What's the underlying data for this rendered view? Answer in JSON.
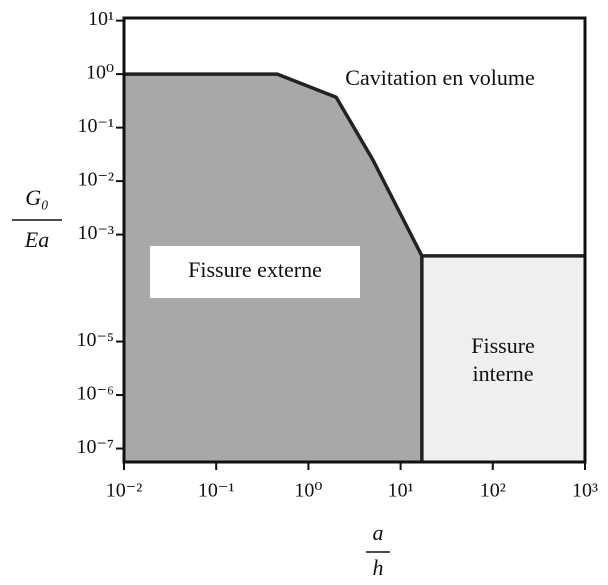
{
  "chart_data": {
    "type": "phase",
    "xlabel": {
      "numerator": "a",
      "denominator": "h"
    },
    "ylabel": {
      "numerator": "G₀",
      "denominator": "Ea"
    },
    "xscale": "log",
    "yscale": "log",
    "xlim": [
      0.01,
      1000
    ],
    "ylim": [
      5.6e-08,
      11.2
    ],
    "xticks": [
      {
        "value": 0.01,
        "label": "10⁻²"
      },
      {
        "value": 0.1,
        "label": "10⁻¹"
      },
      {
        "value": 1,
        "label": "10⁰"
      },
      {
        "value": 10,
        "label": "10¹"
      },
      {
        "value": 100,
        "label": "10²"
      },
      {
        "value": 1000,
        "label": "10³"
      }
    ],
    "yticks": [
      {
        "value": 10,
        "label": "10¹"
      },
      {
        "value": 1,
        "label": "10⁰"
      },
      {
        "value": 0.1,
        "label": "10⁻¹"
      },
      {
        "value": 0.01,
        "label": "10⁻²"
      },
      {
        "value": 0.001,
        "label": "10⁻³"
      },
      {
        "value": 1e-05,
        "label": "10⁻⁵"
      },
      {
        "value": 1e-06,
        "label": "10⁻⁶"
      },
      {
        "value": 1e-07,
        "label": "10⁻⁷"
      }
    ],
    "boundary": {
      "x": [
        0.01,
        0.46,
        2,
        5,
        17
      ],
      "y": [
        1,
        1,
        0.37,
        0.025,
        0.0004
      ],
      "color": "#222222"
    },
    "regions": [
      {
        "label": [
          "Cavitation en volume"
        ],
        "color": "#ffffff"
      },
      {
        "label": [
          "Fissure externe"
        ],
        "color": "#a8a8a8"
      },
      {
        "label": [
          "Fissure",
          "interne"
        ],
        "color": "#efefef"
      }
    ]
  }
}
